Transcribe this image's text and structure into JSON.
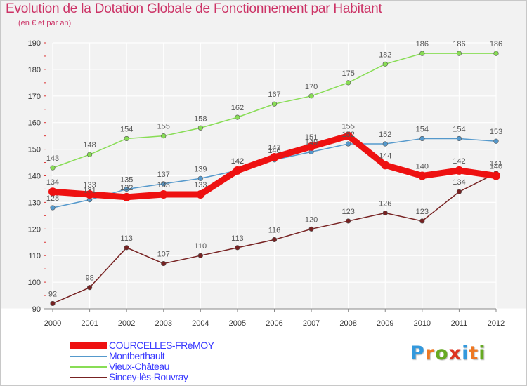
{
  "title": "Evolution de la Dotation Globale de Fonctionnement par Habitant",
  "subtitle": "(en € et par an)",
  "logo": {
    "text": "Proxiti",
    "letter_colors": [
      "#3399dd",
      "#ee7722",
      "#66aa22",
      "#dd3322",
      "#3399dd",
      "#ee7722",
      "#66aa22"
    ]
  },
  "chart_data": {
    "type": "line",
    "title": "Evolution de la Dotation Globale de Fonctionnement par Habitant",
    "subtitle": "(en € et par an)",
    "x": [
      2000,
      2001,
      2002,
      2003,
      2004,
      2005,
      2006,
      2007,
      2008,
      2009,
      2010,
      2011,
      2012
    ],
    "ylim": [
      90,
      190
    ],
    "yticks": [
      90,
      100,
      110,
      120,
      130,
      140,
      150,
      160,
      170,
      180,
      190
    ],
    "grid": true,
    "legend_position": "bottom-left",
    "series": [
      {
        "name": "Vieux-Château",
        "color": "#88dd55",
        "thick": false,
        "values": [
          143,
          148,
          154,
          155,
          158,
          162,
          167,
          170,
          175,
          182,
          186,
          186,
          186
        ]
      },
      {
        "name": "Montberthault",
        "color": "#5599cc",
        "thick": false,
        "values": [
          128,
          131,
          135,
          137,
          139,
          142,
          146,
          149,
          152,
          152,
          154,
          154,
          153
        ]
      },
      {
        "name": "Sincey-lès-Rouvray",
        "color": "#772222",
        "thick": false,
        "values": [
          92,
          98,
          113,
          107,
          110,
          113,
          116,
          120,
          123,
          126,
          123,
          134,
          141
        ]
      },
      {
        "name": "COURCELLES-FRéMOY",
        "color": "#ee1111",
        "thick": true,
        "values": [
          134,
          133,
          132,
          133,
          133,
          142,
          147,
          151,
          155,
          144,
          140,
          142,
          140
        ]
      }
    ],
    "legend_order": [
      "COURCELLES-FRéMOY",
      "Montberthault",
      "Vieux-Château",
      "Sincey-lès-Rouvray"
    ]
  }
}
